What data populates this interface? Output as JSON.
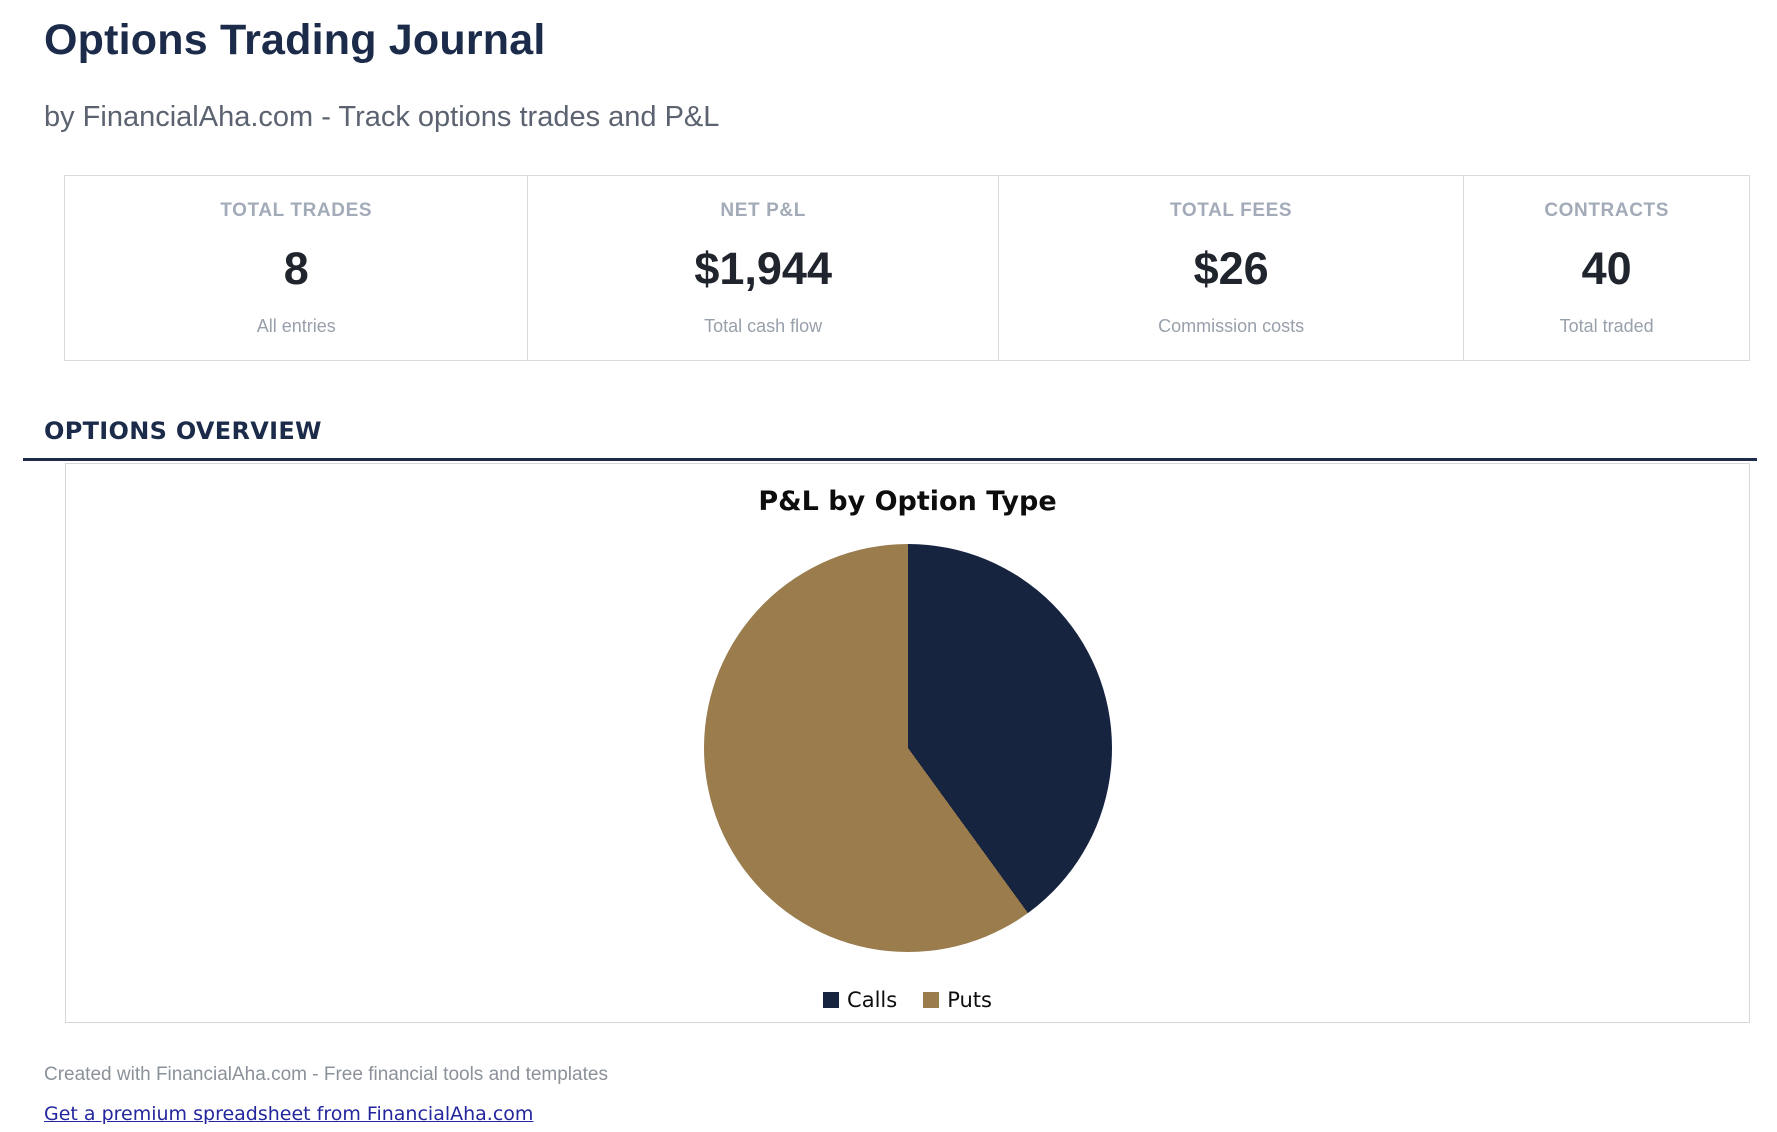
{
  "page": {
    "title": "Options Trading Journal",
    "subtitle": "by FinancialAha.com - Track options trades and P&L"
  },
  "stats": {
    "cards": [
      {
        "label": "TOTAL TRADES",
        "value": "8",
        "caption": "All entries"
      },
      {
        "label": "NET P&L",
        "value": "$1,944",
        "caption": "Total cash flow"
      },
      {
        "label": "TOTAL FEES",
        "value": "$26",
        "caption": "Commission costs"
      },
      {
        "label": "CONTRACTS",
        "value": "40",
        "caption": "Total traded"
      }
    ]
  },
  "section": {
    "title": "OPTIONS OVERVIEW"
  },
  "chart_data": {
    "type": "pie",
    "title": "P&L by Option Type",
    "labels": [
      "Calls",
      "Puts"
    ],
    "values_percent": [
      40,
      60
    ],
    "colors": [
      "#172440",
      "#9a7c4d"
    ],
    "start_angle_deg": 0,
    "direction": "clockwise",
    "legend_position": "bottom"
  },
  "footer": {
    "credit": "Created with FinancialAha.com - Free financial tools and templates",
    "link_label": "Get a premium spreadsheet from FinancialAha.com"
  },
  "colors": {
    "heading_navy": "#1c2b4a",
    "pie_calls_navy": "#172440",
    "pie_puts_tan": "#9a7c4d",
    "link_blue": "#23269c",
    "muted_gray": "#98a0ab",
    "border_gray": "#d8dadd"
  }
}
